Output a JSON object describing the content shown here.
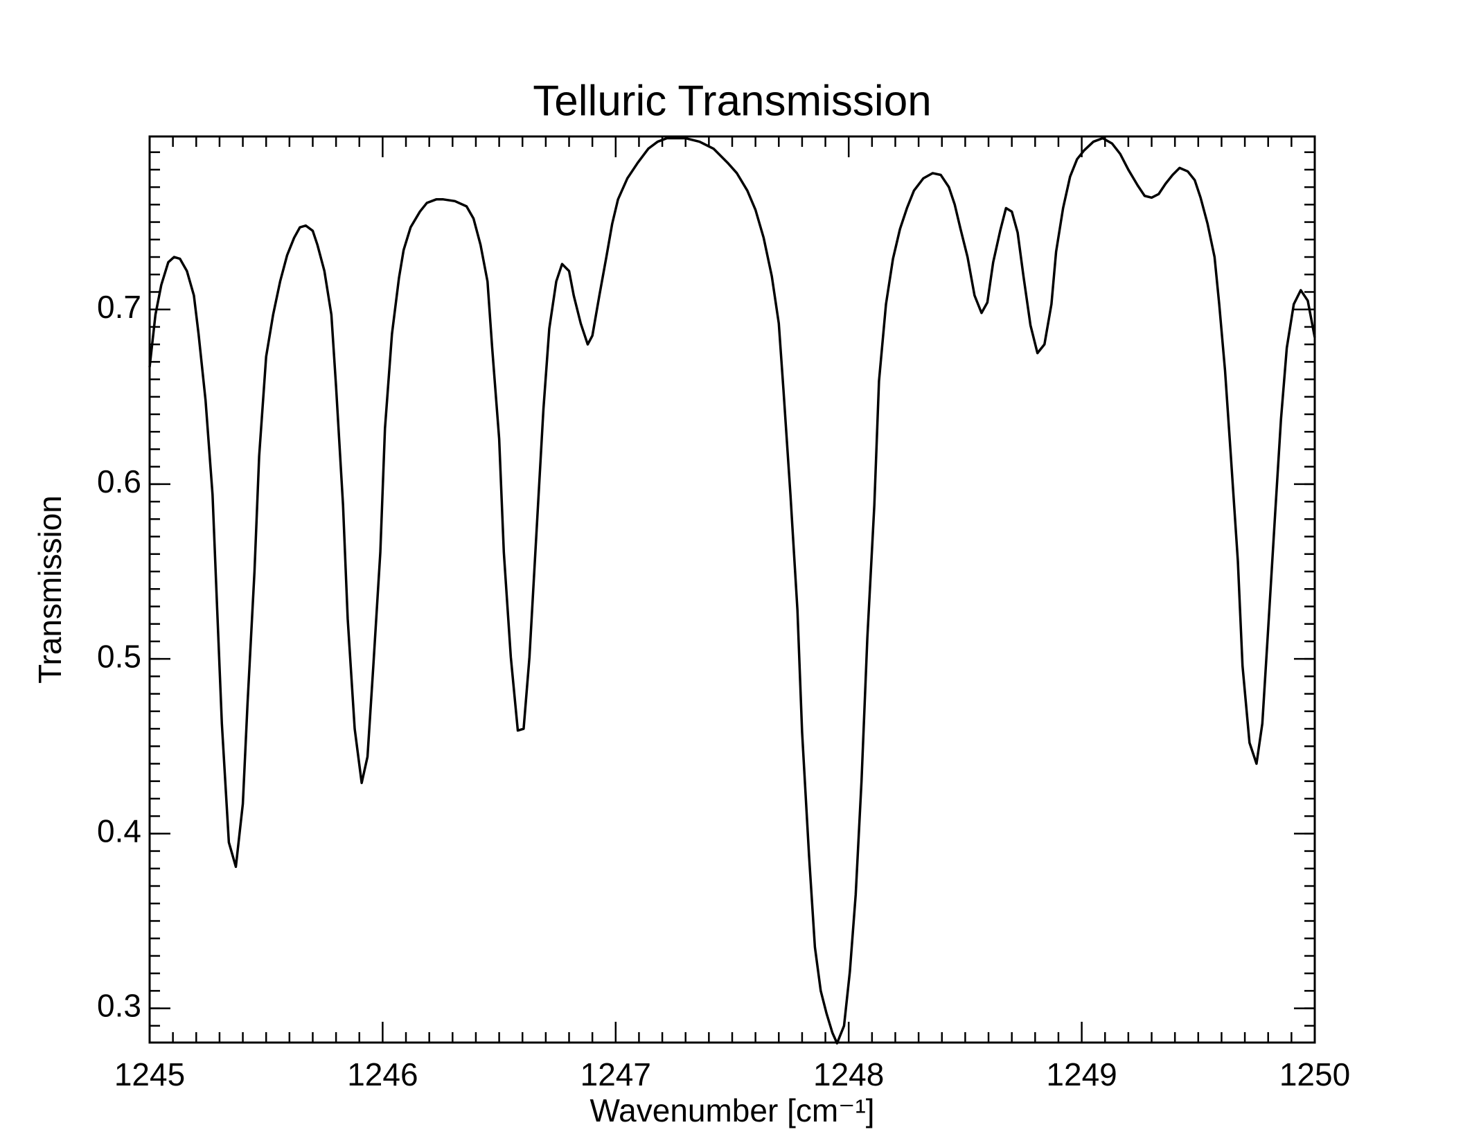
{
  "chart_data": {
    "type": "line",
    "title": "Telluric Transmission",
    "x_label": "Wavenumber [cm⁻¹]",
    "y_label": "Transmission",
    "color": "#000000",
    "xlim": [
      1245,
      1250
    ],
    "xticks": [
      1245,
      1246,
      1247,
      1248,
      1249,
      1250
    ],
    "ylim": [
      0.2804,
      0.799
    ],
    "yticks": [
      0.3,
      0.4,
      0.5,
      0.6,
      0.7
    ],
    "x": [
      1245.0,
      1245.025,
      1245.05,
      1245.08,
      1245.105,
      1245.13,
      1245.16,
      1245.19,
      1245.21,
      1245.24,
      1245.27,
      1245.29,
      1245.31,
      1245.34,
      1245.37,
      1245.4,
      1245.42,
      1245.45,
      1245.47,
      1245.5,
      1245.53,
      1245.56,
      1245.59,
      1245.62,
      1245.645,
      1245.67,
      1245.7,
      1245.72,
      1245.75,
      1245.78,
      1245.8,
      1245.83,
      1245.85,
      1245.88,
      1245.91,
      1245.935,
      1245.96,
      1245.99,
      1246.01,
      1246.04,
      1246.07,
      1246.09,
      1246.12,
      1246.16,
      1246.19,
      1246.23,
      1246.26,
      1246.31,
      1246.36,
      1246.39,
      1246.42,
      1246.45,
      1246.47,
      1246.5,
      1246.52,
      1246.55,
      1246.58,
      1246.605,
      1246.63,
      1246.66,
      1246.69,
      1246.715,
      1246.745,
      1246.77,
      1246.8,
      1246.82,
      1246.85,
      1246.88,
      1246.9,
      1246.93,
      1246.96,
      1246.985,
      1247.01,
      1247.05,
      1247.095,
      1247.14,
      1247.18,
      1247.22,
      1247.3,
      1247.36,
      1247.42,
      1247.48,
      1247.52,
      1247.565,
      1247.6,
      1247.635,
      1247.67,
      1247.7,
      1247.72,
      1247.75,
      1247.78,
      1247.8,
      1247.83,
      1247.855,
      1247.88,
      1247.905,
      1247.93,
      1247.95,
      1247.98,
      1248.005,
      1248.03,
      1248.055,
      1248.08,
      1248.11,
      1248.13,
      1248.16,
      1248.19,
      1248.22,
      1248.25,
      1248.28,
      1248.32,
      1248.36,
      1248.395,
      1248.43,
      1248.455,
      1248.48,
      1248.51,
      1248.54,
      1248.57,
      1248.595,
      1248.62,
      1248.65,
      1248.675,
      1248.7,
      1248.725,
      1248.75,
      1248.78,
      1248.81,
      1248.84,
      1248.87,
      1248.89,
      1248.92,
      1248.95,
      1248.98,
      1249.01,
      1249.05,
      1249.09,
      1249.13,
      1249.165,
      1249.2,
      1249.24,
      1249.27,
      1249.3,
      1249.33,
      1249.36,
      1249.39,
      1249.42,
      1249.455,
      1249.485,
      1249.51,
      1249.54,
      1249.57,
      1249.59,
      1249.615,
      1249.64,
      1249.67,
      1249.69,
      1249.72,
      1249.75,
      1249.775,
      1249.8,
      1249.83,
      1249.855,
      1249.88,
      1249.91,
      1249.94,
      1249.97,
      1250.0
    ],
    "values": [
      0.667,
      0.697,
      0.714,
      0.727,
      0.73,
      0.729,
      0.722,
      0.708,
      0.686,
      0.648,
      0.594,
      0.528,
      0.463,
      0.395,
      0.381,
      0.417,
      0.474,
      0.55,
      0.616,
      0.673,
      0.697,
      0.716,
      0.731,
      0.741,
      0.747,
      0.748,
      0.745,
      0.737,
      0.722,
      0.697,
      0.656,
      0.588,
      0.523,
      0.46,
      0.429,
      0.444,
      0.496,
      0.561,
      0.632,
      0.686,
      0.718,
      0.734,
      0.747,
      0.756,
      0.761,
      0.763,
      0.763,
      0.762,
      0.759,
      0.752,
      0.737,
      0.716,
      0.678,
      0.626,
      0.561,
      0.501,
      0.459,
      0.46,
      0.501,
      0.572,
      0.643,
      0.689,
      0.716,
      0.726,
      0.722,
      0.708,
      0.692,
      0.68,
      0.685,
      0.708,
      0.73,
      0.749,
      0.763,
      0.775,
      0.784,
      0.792,
      0.796,
      0.798,
      0.798,
      0.796,
      0.792,
      0.784,
      0.778,
      0.768,
      0.757,
      0.741,
      0.719,
      0.692,
      0.654,
      0.594,
      0.528,
      0.458,
      0.387,
      0.335,
      0.31,
      0.297,
      0.286,
      0.28,
      0.29,
      0.321,
      0.365,
      0.43,
      0.512,
      0.588,
      0.659,
      0.703,
      0.729,
      0.746,
      0.758,
      0.768,
      0.775,
      0.778,
      0.777,
      0.77,
      0.76,
      0.746,
      0.73,
      0.708,
      0.698,
      0.704,
      0.727,
      0.745,
      0.758,
      0.756,
      0.744,
      0.719,
      0.691,
      0.675,
      0.68,
      0.703,
      0.733,
      0.758,
      0.776,
      0.786,
      0.791,
      0.796,
      0.798,
      0.795,
      0.789,
      0.78,
      0.771,
      0.765,
      0.764,
      0.766,
      0.772,
      0.777,
      0.781,
      0.779,
      0.774,
      0.764,
      0.749,
      0.73,
      0.703,
      0.665,
      0.616,
      0.556,
      0.496,
      0.452,
      0.44,
      0.463,
      0.517,
      0.583,
      0.637,
      0.678,
      0.703,
      0.711,
      0.705,
      0.684
    ]
  }
}
